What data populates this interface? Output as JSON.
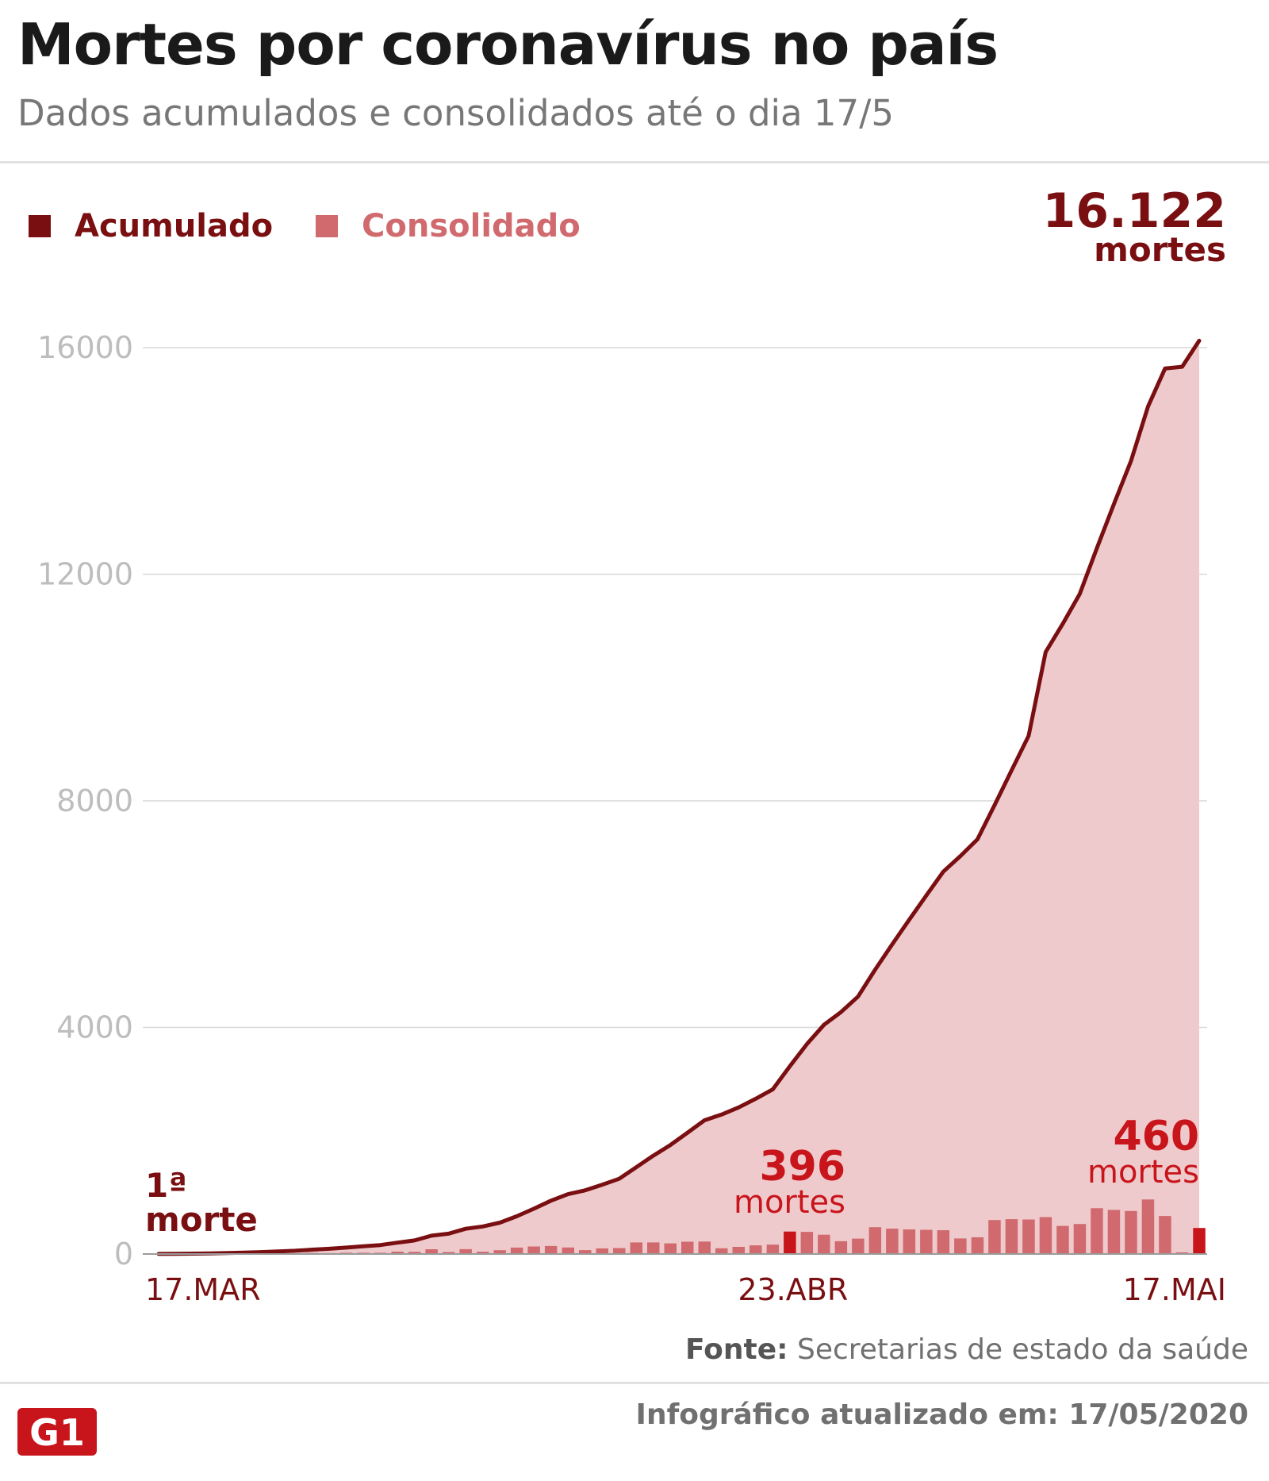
{
  "header": {
    "title": "Mortes por coronavírus no país",
    "subtitle": "Dados acumulados e consolidados até o dia 17/5"
  },
  "legend": [
    {
      "label": "Acumulado",
      "color": "#7a0f12"
    },
    {
      "label": "Consolidado",
      "color": "#d06a6e"
    }
  ],
  "total": {
    "value": "16.122",
    "unit": "mortes"
  },
  "annotations": {
    "first": {
      "line1": "1ª",
      "line2": "morte"
    },
    "mid": {
      "value": "396",
      "unit": "mortes"
    },
    "last": {
      "value": "460",
      "unit": "mortes"
    }
  },
  "footer": {
    "source_label": "Fonte:",
    "source_text": "Secretarias de estado da saúde",
    "updated": "Infográfico atualizado em: 17/05/2020",
    "logo": "G1"
  },
  "colors": {
    "line": "#7a0f12",
    "area": "#efcacc",
    "bar": "#d06a6e",
    "bar_highlight": "#c8141b",
    "grid": "#d9d9d9"
  },
  "chart_data": {
    "type": "line",
    "title": "Mortes por coronavírus no país",
    "ylim": [
      0,
      16000
    ],
    "yticks": [
      0,
      4000,
      8000,
      12000,
      16000
    ],
    "ytick_labels": [
      "0",
      "4000",
      "8000",
      "12000",
      "16000"
    ],
    "grid": true,
    "legend_position": "top-left",
    "x_start": "17.MAR",
    "x_end": "17.MAI",
    "xtick_labels": [
      {
        "label": "17.MAR",
        "index": 0
      },
      {
        "label": "23.ABR",
        "index": 37
      },
      {
        "label": "17.MAI",
        "index": 61
      }
    ],
    "series": [
      {
        "name": "Acumulado",
        "values": [
          1,
          4,
          7,
          11,
          18,
          25,
          34,
          46,
          57,
          77,
          92,
          114,
          136,
          159,
          201,
          240,
          324,
          359,
          445,
          486,
          553,
          667,
          800,
          941,
          1056,
          1124,
          1223,
          1328,
          1532,
          1736,
          1924,
          2141,
          2361,
          2462,
          2588,
          2741,
          2906,
          3313,
          3704,
          4045,
          4271,
          4543,
          5017,
          5466,
          5901,
          6329,
          6750,
          7025,
          7321,
          7921,
          8536,
          9146,
          10627,
          11123,
          11653,
          12461,
          13240,
          13999,
          14962,
          15633,
          15662,
          16122
        ]
      },
      {
        "name": "Consolidado",
        "values": [
          1,
          3,
          3,
          4,
          7,
          7,
          9,
          12,
          11,
          20,
          15,
          22,
          22,
          23,
          42,
          39,
          84,
          35,
          86,
          41,
          67,
          114,
          133,
          141,
          115,
          68,
          99,
          105,
          204,
          204,
          188,
          217,
          220,
          101,
          126,
          153,
          165,
          396,
          391,
          341,
          226,
          272,
          474,
          449,
          435,
          428,
          421,
          275,
          296,
          600,
          615,
          610,
          651,
          496,
          530,
          808,
          779,
          759,
          963,
          671,
          29,
          460
        ]
      }
    ]
  }
}
